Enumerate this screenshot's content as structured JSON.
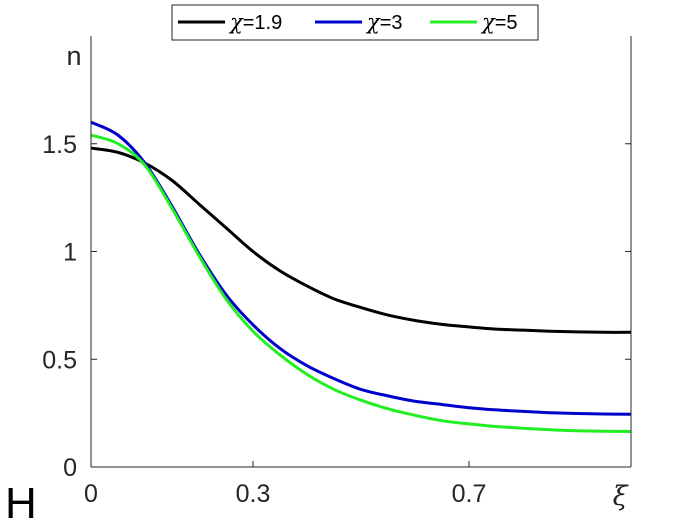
{
  "panel_label": "H",
  "chart_data": {
    "type": "line",
    "title": "",
    "xlabel": "ξ",
    "ylabel": "n",
    "xlim": [
      0,
      1
    ],
    "ylim": [
      0,
      2
    ],
    "xticks": [
      0,
      0.3,
      0.7
    ],
    "xtick_labels": [
      "0",
      "0.3",
      "0.7"
    ],
    "yticks": [
      0,
      0.5,
      1,
      1.5
    ],
    "ytick_labels": [
      "0",
      "0.5",
      "1",
      "1.5"
    ],
    "grid": false,
    "legend_position": "top",
    "series": [
      {
        "name": "χ=1.9",
        "legend_prefix": "χ",
        "legend_value": "=1.9",
        "color": "#000000",
        "x": [
          0,
          0.05,
          0.1,
          0.15,
          0.2,
          0.25,
          0.3,
          0.35,
          0.4,
          0.45,
          0.5,
          0.55,
          0.6,
          0.65,
          0.7,
          0.75,
          0.8,
          0.85,
          0.9,
          0.95,
          1.0
        ],
        "y": [
          1.48,
          1.46,
          1.41,
          1.33,
          1.22,
          1.11,
          1.0,
          0.91,
          0.84,
          0.78,
          0.74,
          0.705,
          0.68,
          0.662,
          0.65,
          0.64,
          0.635,
          0.63,
          0.627,
          0.625,
          0.625
        ]
      },
      {
        "name": "χ=3",
        "legend_prefix": "χ",
        "legend_value": "=3",
        "color": "#0000cc",
        "x": [
          0,
          0.05,
          0.1,
          0.15,
          0.2,
          0.25,
          0.3,
          0.35,
          0.4,
          0.45,
          0.5,
          0.55,
          0.6,
          0.65,
          0.7,
          0.75,
          0.8,
          0.85,
          0.9,
          0.95,
          1.0
        ],
        "y": [
          1.6,
          1.54,
          1.41,
          1.21,
          0.99,
          0.8,
          0.66,
          0.55,
          0.47,
          0.41,
          0.36,
          0.33,
          0.305,
          0.29,
          0.275,
          0.265,
          0.258,
          0.252,
          0.248,
          0.246,
          0.245
        ]
      },
      {
        "name": "χ=5",
        "legend_prefix": "χ",
        "legend_value": "=5",
        "color": "#22ee22",
        "x": [
          0,
          0.05,
          0.1,
          0.15,
          0.2,
          0.25,
          0.3,
          0.35,
          0.4,
          0.45,
          0.5,
          0.55,
          0.6,
          0.65,
          0.7,
          0.75,
          0.8,
          0.85,
          0.9,
          0.95,
          1.0
        ],
        "y": [
          1.54,
          1.5,
          1.4,
          1.2,
          0.98,
          0.78,
          0.63,
          0.52,
          0.43,
          0.36,
          0.31,
          0.27,
          0.24,
          0.215,
          0.2,
          0.188,
          0.18,
          0.173,
          0.168,
          0.166,
          0.165
        ]
      }
    ]
  }
}
